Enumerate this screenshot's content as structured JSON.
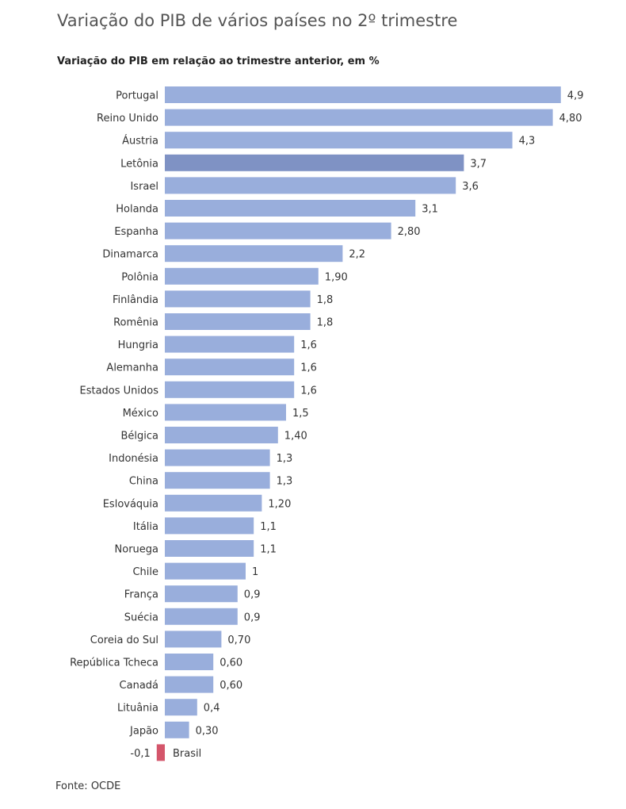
{
  "title": "Variação do PIB de vários países no 2º trimestre",
  "source": "Fonte: OCDE",
  "chart_data": {
    "type": "bar",
    "orientation": "horizontal",
    "title": "Variação do PIB de vários países no 2º trimestre",
    "subtitle": "Variação do PIB em relação ao trimestre anterior, em %",
    "xlabel": "",
    "ylabel": "",
    "grid": false,
    "legend": "none",
    "xlim": [
      -0.1,
      4.9
    ],
    "categories": [
      "Portugal",
      "Reino Unido",
      "Áustria",
      "Letônia",
      "Israel",
      "Holanda",
      "Espanha",
      "Dinamarca",
      "Polônia",
      "Finlândia",
      "Romênia",
      "Hungria",
      "Alemanha",
      "Estados Unidos",
      "México",
      "Bélgica",
      "Indonésia",
      "China",
      "Eslováquia",
      "Itália",
      "Noruega",
      "Chile",
      "França",
      "Suécia",
      "Coreia do Sul",
      "República Tcheca",
      "Canadá",
      "Lituânia",
      "Japão",
      "Brasil"
    ],
    "values": [
      4.9,
      4.8,
      4.3,
      3.7,
      3.6,
      3.1,
      2.8,
      2.2,
      1.9,
      1.8,
      1.8,
      1.6,
      1.6,
      1.6,
      1.5,
      1.4,
      1.3,
      1.3,
      1.2,
      1.1,
      1.1,
      1.0,
      0.9,
      0.9,
      0.7,
      0.6,
      0.6,
      0.4,
      0.3,
      -0.1
    ],
    "value_labels": [
      "4,9",
      "4,80",
      "4,3",
      "3,7",
      "3,6",
      "3,1",
      "2,80",
      "2,2",
      "1,90",
      "1,8",
      "1,8",
      "1,6",
      "1,6",
      "1,6",
      "1,5",
      "1,40",
      "1,3",
      "1,3",
      "1,20",
      "1,1",
      "1,1",
      "1",
      "0,9",
      "0,9",
      "0,70",
      "0,60",
      "0,60",
      "0,4",
      "0,30",
      "-0,1"
    ],
    "colors": {
      "default": "#99aedc",
      "highlight": "#7f92c4",
      "negative": "#d4566b"
    },
    "highlighted": [
      "Letônia"
    ]
  }
}
